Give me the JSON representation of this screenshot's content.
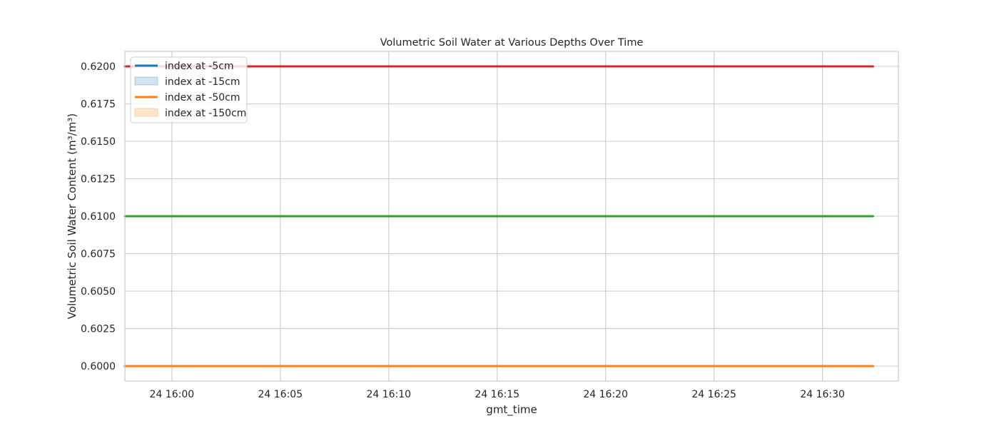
{
  "chart_data": {
    "type": "line",
    "title": "Volumetric Soil Water at Various Depths Over Time",
    "xlabel": "gmt_time",
    "ylabel": "Volumetric Soil Water Content (m³/m³)",
    "xlim": [
      "15:57:50",
      "16:33:30"
    ],
    "ylim": [
      0.599,
      0.621
    ],
    "x_ticks": [
      {
        "time": "16:00",
        "label": "24 16:00"
      },
      {
        "time": "16:05",
        "label": "24 16:05"
      },
      {
        "time": "16:10",
        "label": "24 16:10"
      },
      {
        "time": "16:15",
        "label": "24 16:15"
      },
      {
        "time": "16:20",
        "label": "24 16:20"
      },
      {
        "time": "16:25",
        "label": "24 16:25"
      },
      {
        "time": "16:30",
        "label": "24 16:30"
      }
    ],
    "y_ticks": [
      {
        "value": 0.6,
        "label": "0.6000"
      },
      {
        "value": 0.6025,
        "label": "0.6025"
      },
      {
        "value": 0.605,
        "label": "0.6050"
      },
      {
        "value": 0.6075,
        "label": "0.6075"
      },
      {
        "value": 0.61,
        "label": "0.6100"
      },
      {
        "value": 0.6125,
        "label": "0.6125"
      },
      {
        "value": 0.615,
        "label": "0.6150"
      },
      {
        "value": 0.6175,
        "label": "0.6175"
      },
      {
        "value": 0.62,
        "label": "0.6200"
      }
    ],
    "grid": true,
    "legend_position": "top-left",
    "legend": [
      {
        "label": "index at -5cm",
        "kind": "line",
        "color": "#1f77b4"
      },
      {
        "label": "index at -15cm",
        "kind": "patch",
        "color": "#1f77b4"
      },
      {
        "label": "index at -50cm",
        "kind": "line",
        "color": "#ff7f0e"
      },
      {
        "label": "index at -150cm",
        "kind": "patch",
        "color": "#ff7f0e"
      }
    ],
    "series": [
      {
        "color": "#d62728",
        "x": [
          "15:57:50",
          "16:32:20"
        ],
        "y": [
          0.62,
          0.62
        ]
      },
      {
        "color": "#2ca02c",
        "x": [
          "15:57:50",
          "16:32:20"
        ],
        "y": [
          0.61,
          0.61
        ]
      },
      {
        "color": "#1f77b4",
        "x": [
          "15:57:50",
          "16:32:20"
        ],
        "y": [
          0.6,
          0.6
        ]
      },
      {
        "color": "#ff7f0e",
        "x": [
          "15:57:50",
          "16:32:20"
        ],
        "y": [
          0.6,
          0.6
        ]
      }
    ]
  }
}
